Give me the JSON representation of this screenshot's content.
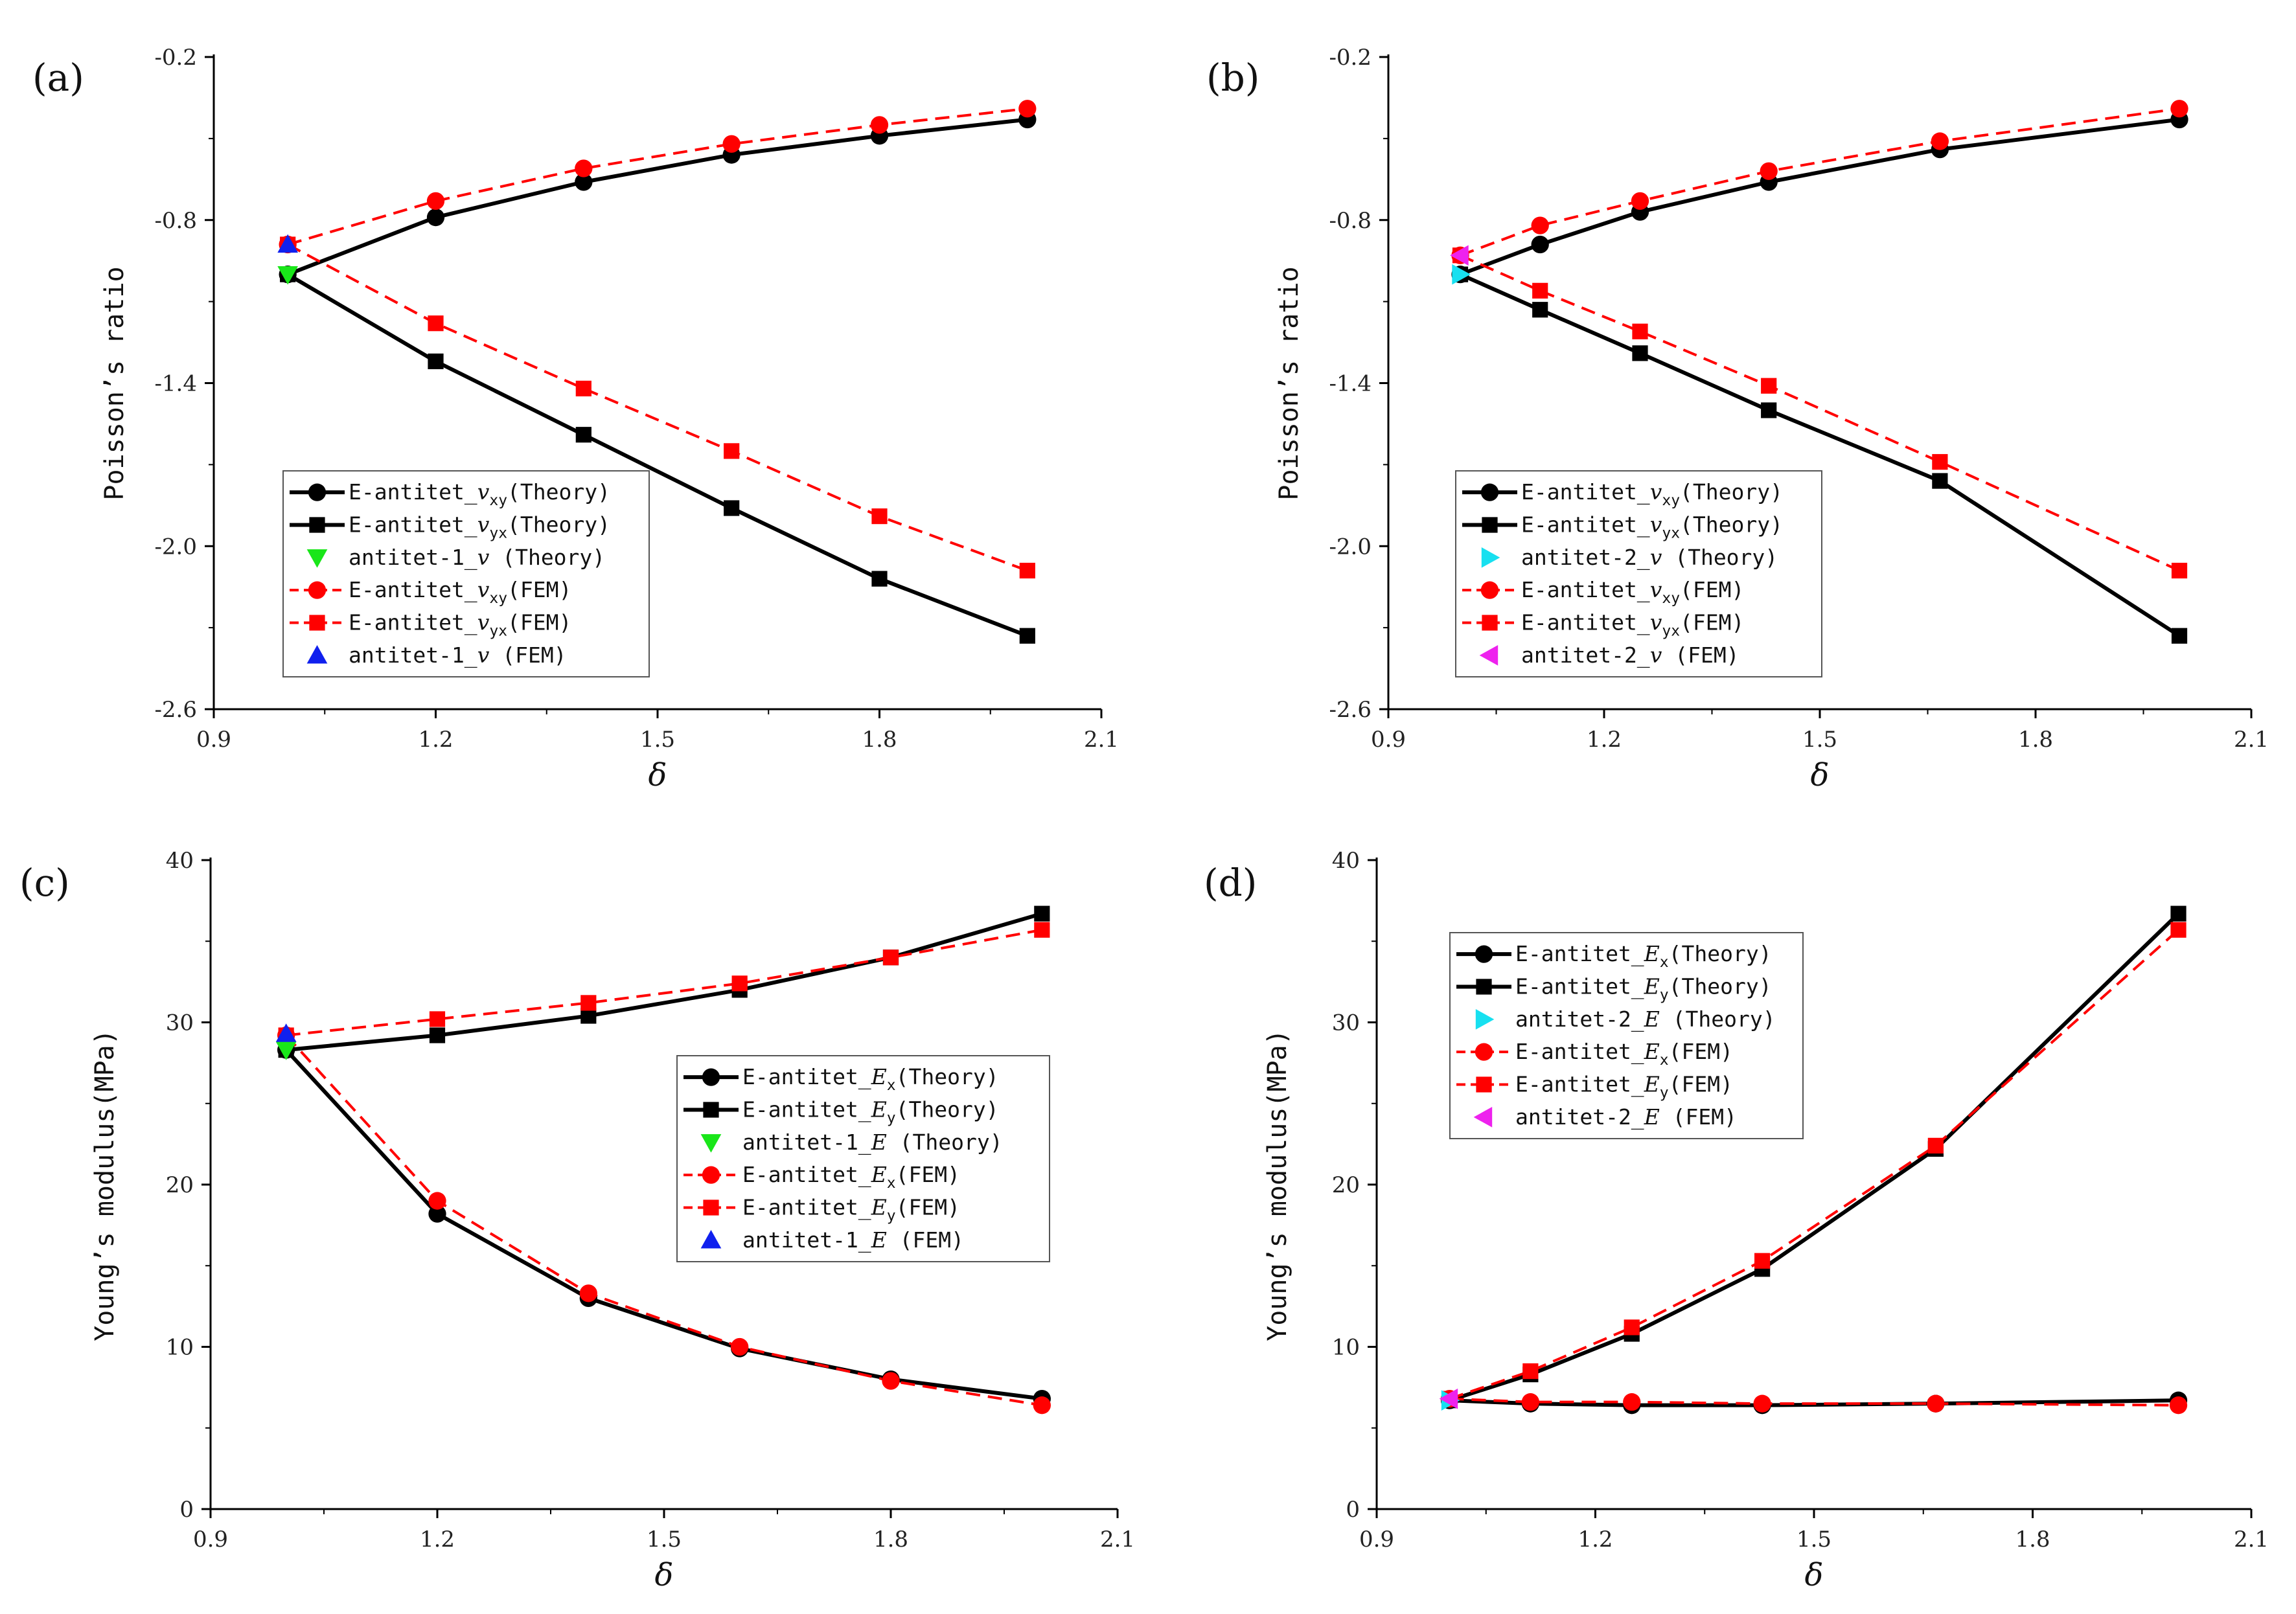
{
  "figure": {
    "x_title": "δ",
    "colors": {
      "theory": "#000000",
      "fem": "#ff0000",
      "green": "#19e619",
      "blue": "#1020ee",
      "cyan": "#17e0f0",
      "magenta": "#ee22ee"
    }
  },
  "chart_data": [
    {
      "type": "line",
      "panel": "(a)",
      "ylabel": "Poisson’s ratio",
      "xlabel": "δ",
      "xlim": [
        0.9,
        2.1
      ],
      "ylim": [
        -2.6,
        -0.2
      ],
      "xticks": [
        "0.9",
        "1.2",
        "1.5",
        "1.8",
        "2.1"
      ],
      "yticks": [
        "-0.2",
        "-0.8",
        "-1.4",
        "-2.0",
        "-2.6"
      ],
      "legend_position": "lower-left",
      "series": [
        {
          "name": "E-antitet_vxy(Theory)",
          "legend": {
            "pre": "E-antitet_",
            "var": "v",
            "sub": "xy",
            "post": "(Theory)"
          },
          "color": "#000000",
          "dash": false,
          "marker": "circle",
          "x": [
            1.0,
            1.2,
            1.4,
            1.6,
            1.8,
            2.0
          ],
          "y": [
            -1.0,
            -0.79,
            -0.66,
            -0.56,
            -0.49,
            -0.43
          ]
        },
        {
          "name": "E-antitet_vyx(Theory)",
          "legend": {
            "pre": "E-antitet_",
            "var": "v",
            "sub": "yx",
            "post": "(Theory)"
          },
          "color": "#000000",
          "dash": false,
          "marker": "square",
          "x": [
            1.0,
            1.2,
            1.4,
            1.6,
            1.8,
            2.0
          ],
          "y": [
            -1.0,
            -1.32,
            -1.59,
            -1.86,
            -2.12,
            -2.33
          ]
        },
        {
          "name": "antitet-1_v (Theory)",
          "legend": {
            "pre": "antitet-1_",
            "var": "v",
            "sub": "",
            "post": " (Theory)"
          },
          "color": "#19e619",
          "dash": null,
          "marker": "triangle-down",
          "x": [
            1.0
          ],
          "y": [
            -1.0
          ]
        },
        {
          "name": "E-antitet_vxy(FEM)",
          "legend": {
            "pre": "E-antitet_",
            "var": "v",
            "sub": "xy",
            "post": "(FEM)"
          },
          "color": "#ff0000",
          "dash": true,
          "marker": "circle",
          "x": [
            1.0,
            1.2,
            1.4,
            1.6,
            1.8,
            2.0
          ],
          "y": [
            -0.89,
            -0.73,
            -0.61,
            -0.52,
            -0.45,
            -0.39
          ]
        },
        {
          "name": "E-antitet_vyx(FEM)",
          "legend": {
            "pre": "E-antitet_",
            "var": "v",
            "sub": "yx",
            "post": "(FEM)"
          },
          "color": "#ff0000",
          "dash": true,
          "marker": "square",
          "x": [
            1.0,
            1.2,
            1.4,
            1.6,
            1.8,
            2.0
          ],
          "y": [
            -0.89,
            -1.18,
            -1.42,
            -1.65,
            -1.89,
            -2.09
          ]
        },
        {
          "name": "antitet-1_v (FEM)",
          "legend": {
            "pre": "antitet-1_",
            "var": "v",
            "sub": "",
            "post": " (FEM)"
          },
          "color": "#1020ee",
          "dash": null,
          "marker": "triangle-up",
          "x": [
            1.0
          ],
          "y": [
            -0.89
          ]
        }
      ]
    },
    {
      "type": "line",
      "panel": "(b)",
      "ylabel": "Poisson’s ratio",
      "xlabel": "δ",
      "xlim": [
        0.9,
        2.1
      ],
      "ylim": [
        -2.6,
        -0.2
      ],
      "xticks": [
        "0.9",
        "1.2",
        "1.5",
        "1.8",
        "2.1"
      ],
      "yticks": [
        "-0.2",
        "-0.8",
        "-1.4",
        "-2.0",
        "-2.6"
      ],
      "legend_position": "lower-left",
      "series": [
        {
          "name": "E-antitet_vxy(Theory)",
          "legend": {
            "pre": "E-antitet_",
            "var": "v",
            "sub": "xy",
            "post": "(Theory)"
          },
          "color": "#000000",
          "dash": false,
          "marker": "circle",
          "x": [
            1.0,
            1.111,
            1.25,
            1.429,
            1.667,
            2.0
          ],
          "y": [
            -1.0,
            -0.89,
            -0.77,
            -0.66,
            -0.54,
            -0.43
          ]
        },
        {
          "name": "E-antitet_vyx(Theory)",
          "legend": {
            "pre": "E-antitet_",
            "var": "v",
            "sub": "yx",
            "post": "(Theory)"
          },
          "color": "#000000",
          "dash": false,
          "marker": "square",
          "x": [
            1.0,
            1.111,
            1.25,
            1.429,
            1.667,
            2.0
          ],
          "y": [
            -1.0,
            -1.13,
            -1.29,
            -1.5,
            -1.76,
            -2.33
          ]
        },
        {
          "name": "antitet-2_v (Theory)",
          "legend": {
            "pre": "antitet-2_",
            "var": "v",
            "sub": "",
            "post": " (Theory)"
          },
          "color": "#17e0f0",
          "dash": null,
          "marker": "triangle-right",
          "x": [
            1.0
          ],
          "y": [
            -1.0
          ]
        },
        {
          "name": "E-antitet_vxy(FEM)",
          "legend": {
            "pre": "E-antitet_",
            "var": "v",
            "sub": "xy",
            "post": "(FEM)"
          },
          "color": "#ff0000",
          "dash": true,
          "marker": "circle",
          "x": [
            1.0,
            1.111,
            1.25,
            1.429,
            1.667,
            2.0
          ],
          "y": [
            -0.93,
            -0.82,
            -0.73,
            -0.62,
            -0.51,
            -0.39
          ]
        },
        {
          "name": "E-antitet_vyx(FEM)",
          "legend": {
            "pre": "E-antitet_",
            "var": "v",
            "sub": "yx",
            "post": "(FEM)"
          },
          "color": "#ff0000",
          "dash": true,
          "marker": "square",
          "x": [
            1.0,
            1.111,
            1.25,
            1.429,
            1.667,
            2.0
          ],
          "y": [
            -0.93,
            -1.06,
            -1.21,
            -1.41,
            -1.69,
            -2.09
          ]
        },
        {
          "name": "antitet-2_v (FEM)",
          "legend": {
            "pre": "antitet-2_",
            "var": "v",
            "sub": "",
            "post": " (FEM)"
          },
          "color": "#ee22ee",
          "dash": null,
          "marker": "triangle-left",
          "x": [
            1.0
          ],
          "y": [
            -0.93
          ]
        }
      ]
    },
    {
      "type": "line",
      "panel": "(c)",
      "ylabel": "Young’s modulus(MPa)",
      "xlabel": "δ",
      "xlim": [
        0.9,
        2.1
      ],
      "ylim": [
        0,
        40
      ],
      "xticks": [
        "0.9",
        "1.2",
        "1.5",
        "1.8",
        "2.1"
      ],
      "yticks": [
        "0",
        "10",
        "20",
        "30",
        "40"
      ],
      "legend_position": "center-right",
      "series": [
        {
          "name": "E-antitet_Ex(Theory)",
          "legend": {
            "pre": "E-antitet_",
            "var": "E",
            "sub": "x",
            "post": "(Theory)"
          },
          "color": "#000000",
          "dash": false,
          "marker": "circle",
          "x": [
            1.0,
            1.2,
            1.4,
            1.6,
            1.8,
            2.0
          ],
          "y": [
            28.3,
            18.2,
            13.0,
            9.9,
            8.0,
            6.8
          ]
        },
        {
          "name": "E-antitet_Ey(Theory)",
          "legend": {
            "pre": "E-antitet_",
            "var": "E",
            "sub": "y",
            "post": "(Theory)"
          },
          "color": "#000000",
          "dash": false,
          "marker": "square",
          "x": [
            1.0,
            1.2,
            1.4,
            1.6,
            1.8,
            2.0
          ],
          "y": [
            28.3,
            29.2,
            30.4,
            32.0,
            34.0,
            36.7
          ]
        },
        {
          "name": "antitet-1_E (Theory)",
          "legend": {
            "pre": "antitet-1_",
            "var": "E",
            "sub": "",
            "post": " (Theory)"
          },
          "color": "#19e619",
          "dash": null,
          "marker": "triangle-down",
          "x": [
            1.0
          ],
          "y": [
            28.3
          ]
        },
        {
          "name": "E-antitet_Ex(FEM)",
          "legend": {
            "pre": "E-antitet_",
            "var": "E",
            "sub": "x",
            "post": "(FEM)"
          },
          "color": "#ff0000",
          "dash": true,
          "marker": "circle",
          "x": [
            1.0,
            1.2,
            1.4,
            1.6,
            1.8,
            2.0
          ],
          "y": [
            29.2,
            19.0,
            13.3,
            10.0,
            7.9,
            6.4
          ]
        },
        {
          "name": "E-antitet_Ey(FEM)",
          "legend": {
            "pre": "E-antitet_",
            "var": "E",
            "sub": "y",
            "post": "(FEM)"
          },
          "color": "#ff0000",
          "dash": true,
          "marker": "square",
          "x": [
            1.0,
            1.2,
            1.4,
            1.6,
            1.8,
            2.0
          ],
          "y": [
            29.2,
            30.2,
            31.2,
            32.4,
            34.0,
            35.7
          ]
        },
        {
          "name": "antitet-1_E (FEM)",
          "legend": {
            "pre": "antitet-1_",
            "var": "E",
            "sub": "",
            "post": " (FEM)"
          },
          "color": "#1020ee",
          "dash": null,
          "marker": "triangle-up",
          "x": [
            1.0
          ],
          "y": [
            29.3
          ]
        }
      ]
    },
    {
      "type": "line",
      "panel": "(d)",
      "ylabel": "Young’s modulus(MPa)",
      "xlabel": "δ",
      "xlim": [
        0.9,
        2.1
      ],
      "ylim": [
        0,
        40
      ],
      "xticks": [
        "0.9",
        "1.2",
        "1.5",
        "1.8",
        "2.1"
      ],
      "yticks": [
        "0",
        "10",
        "20",
        "30",
        "40"
      ],
      "legend_position": "top-left",
      "series": [
        {
          "name": "E-antitet_Ex(Theory)",
          "legend": {
            "pre": "E-antitet_",
            "var": "E",
            "sub": "x",
            "post": "(Theory)"
          },
          "color": "#000000",
          "dash": false,
          "marker": "circle",
          "x": [
            1.0,
            1.111,
            1.25,
            1.429,
            1.667,
            2.0
          ],
          "y": [
            6.7,
            6.5,
            6.4,
            6.4,
            6.5,
            6.7
          ]
        },
        {
          "name": "E-antitet_Ey(Theory)",
          "legend": {
            "pre": "E-antitet_",
            "var": "E",
            "sub": "y",
            "post": "(Theory)"
          },
          "color": "#000000",
          "dash": false,
          "marker": "square",
          "x": [
            1.0,
            1.111,
            1.25,
            1.429,
            1.667,
            2.0
          ],
          "y": [
            6.7,
            8.3,
            10.8,
            14.8,
            22.2,
            36.7
          ]
        },
        {
          "name": "antitet-2_E (Theory)",
          "legend": {
            "pre": "antitet-2_",
            "var": "E",
            "sub": "",
            "post": " (Theory)"
          },
          "color": "#17e0f0",
          "dash": null,
          "marker": "triangle-right",
          "x": [
            1.0
          ],
          "y": [
            6.7
          ]
        },
        {
          "name": "E-antitet_Ex(FEM)",
          "legend": {
            "pre": "E-antitet_",
            "var": "E",
            "sub": "x",
            "post": "(FEM)"
          },
          "color": "#ff0000",
          "dash": true,
          "marker": "circle",
          "x": [
            1.0,
            1.111,
            1.25,
            1.429,
            1.667,
            2.0
          ],
          "y": [
            6.8,
            6.6,
            6.6,
            6.5,
            6.5,
            6.4
          ]
        },
        {
          "name": "E-antitet_Ey(FEM)",
          "legend": {
            "pre": "E-antitet_",
            "var": "E",
            "sub": "y",
            "post": "(FEM)"
          },
          "color": "#ff0000",
          "dash": true,
          "marker": "square",
          "x": [
            1.0,
            1.111,
            1.25,
            1.429,
            1.667,
            2.0
          ],
          "y": [
            6.8,
            8.5,
            11.2,
            15.3,
            22.4,
            35.7
          ]
        },
        {
          "name": "antitet-2_E (FEM)",
          "legend": {
            "pre": "antitet-2_",
            "var": "E",
            "sub": "",
            "post": " (FEM)"
          },
          "color": "#ee22ee",
          "dash": null,
          "marker": "triangle-left",
          "x": [
            1.0
          ],
          "y": [
            6.8
          ]
        }
      ]
    }
  ]
}
